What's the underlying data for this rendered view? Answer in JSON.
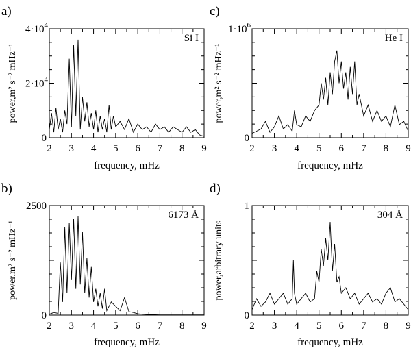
{
  "chart_data": [
    {
      "type": "line",
      "panel_label": "a)",
      "annotation": "Si I",
      "xlabel": "frequency, mHz",
      "ylabel": "power,m² s⁻² mHz⁻¹",
      "xlim": [
        2,
        9
      ],
      "ylim": [
        0,
        40000
      ],
      "xticks": [
        "2",
        "3",
        "4",
        "5",
        "6",
        "7",
        "8",
        "9"
      ],
      "yticks": [
        {
          "value": 0,
          "base": "0",
          "exp": ""
        },
        {
          "value": 20000,
          "base": "2·10",
          "exp": "4"
        },
        {
          "value": 40000,
          "base": "4·10",
          "exp": "4"
        }
      ],
      "x": [
        2.0,
        2.1,
        2.2,
        2.3,
        2.4,
        2.5,
        2.6,
        2.7,
        2.8,
        2.9,
        3.0,
        3.1,
        3.2,
        3.3,
        3.4,
        3.5,
        3.6,
        3.7,
        3.8,
        3.9,
        4.0,
        4.1,
        4.2,
        4.3,
        4.4,
        4.5,
        4.6,
        4.7,
        4.8,
        4.9,
        5.0,
        5.2,
        5.4,
        5.6,
        5.8,
        6.0,
        6.2,
        6.4,
        6.6,
        6.8,
        7.0,
        7.2,
        7.4,
        7.6,
        7.8,
        8.0,
        8.2,
        8.4,
        8.6,
        8.8,
        9.0
      ],
      "values": [
        3000,
        9000,
        2000,
        11000,
        3000,
        7000,
        2000,
        10000,
        5000,
        29000,
        4000,
        34000,
        8000,
        36000,
        3000,
        15000,
        6000,
        13000,
        4000,
        9000,
        3000,
        10000,
        2000,
        8000,
        3000,
        7000,
        2000,
        12000,
        3000,
        8000,
        4000,
        6000,
        3000,
        7000,
        2000,
        5000,
        3000,
        4000,
        2000,
        5000,
        3000,
        4000,
        2000,
        4000,
        3000,
        2000,
        4000,
        2000,
        3000,
        1000,
        500
      ]
    },
    {
      "type": "line",
      "panel_label": "c)",
      "annotation": "He I",
      "xlabel": "frequency, mHz",
      "ylabel": "power,m² s⁻² mHz⁻¹",
      "xlim": [
        2,
        9
      ],
      "ylim": [
        0,
        1000000
      ],
      "xticks": [
        "2",
        "3",
        "4",
        "5",
        "6",
        "7",
        "8",
        "9"
      ],
      "yticks": [
        {
          "value": 0,
          "base": "0",
          "exp": ""
        },
        {
          "value": 1000000,
          "base": "1·10",
          "exp": "6"
        }
      ],
      "x": [
        2.0,
        2.2,
        2.4,
        2.6,
        2.8,
        3.0,
        3.2,
        3.4,
        3.6,
        3.8,
        3.9,
        4.0,
        4.2,
        4.4,
        4.6,
        4.8,
        5.0,
        5.1,
        5.2,
        5.3,
        5.4,
        5.5,
        5.6,
        5.7,
        5.8,
        5.9,
        6.0,
        6.1,
        6.2,
        6.3,
        6.4,
        6.5,
        6.6,
        6.7,
        6.8,
        7.0,
        7.2,
        7.4,
        7.6,
        7.8,
        8.0,
        8.2,
        8.4,
        8.6,
        8.8,
        9.0
      ],
      "values": [
        40000,
        60000,
        80000,
        150000,
        50000,
        100000,
        200000,
        80000,
        120000,
        60000,
        250000,
        120000,
        100000,
        200000,
        150000,
        250000,
        300000,
        500000,
        350000,
        550000,
        300000,
        600000,
        400000,
        700000,
        800000,
        500000,
        700000,
        450000,
        600000,
        350000,
        650000,
        400000,
        700000,
        300000,
        400000,
        200000,
        300000,
        150000,
        250000,
        150000,
        200000,
        100000,
        300000,
        120000,
        150000,
        60000
      ]
    },
    {
      "type": "line",
      "panel_label": "b)",
      "annotation": "6173 Å",
      "xlabel": "frequency, mHz",
      "ylabel": "power,m² s⁻² mHz⁻¹",
      "xlim": [
        2,
        9
      ],
      "ylim": [
        0,
        2500
      ],
      "xticks": [
        "2",
        "3",
        "4",
        "5",
        "6",
        "7",
        "8",
        "9"
      ],
      "yticks": [
        {
          "value": 0,
          "base": "0",
          "exp": ""
        },
        {
          "value": 2500,
          "base": "2500",
          "exp": ""
        }
      ],
      "x": [
        2.0,
        2.2,
        2.4,
        2.5,
        2.6,
        2.7,
        2.8,
        2.9,
        3.0,
        3.1,
        3.2,
        3.3,
        3.4,
        3.5,
        3.6,
        3.7,
        3.8,
        3.9,
        4.0,
        4.1,
        4.2,
        4.3,
        4.4,
        4.5,
        4.6,
        4.8,
        5.0,
        5.2,
        5.4,
        5.6,
        5.8,
        6.0,
        6.2,
        6.4,
        6.6,
        6.8,
        7.0,
        7.5,
        8.0,
        8.5,
        9.0
      ],
      "values": [
        20,
        60,
        40,
        1200,
        300,
        2000,
        500,
        2100,
        800,
        2200,
        600,
        2250,
        700,
        1900,
        500,
        1300,
        400,
        1100,
        300,
        600,
        200,
        500,
        150,
        600,
        100,
        300,
        200,
        100,
        400,
        80,
        60,
        30,
        20,
        15,
        10,
        10,
        5,
        5,
        5,
        5,
        5
      ]
    },
    {
      "type": "line",
      "panel_label": "d)",
      "annotation": "304 Å",
      "xlabel": "frequency, mHz",
      "ylabel": "power,arbitrary units",
      "xlim": [
        2,
        9
      ],
      "ylim": [
        0,
        1
      ],
      "xticks": [
        "2",
        "3",
        "4",
        "5",
        "6",
        "7",
        "8",
        "9"
      ],
      "yticks": [
        {
          "value": 0,
          "base": "0",
          "exp": ""
        },
        {
          "value": 1,
          "base": "1",
          "exp": ""
        }
      ],
      "x": [
        2.0,
        2.2,
        2.4,
        2.6,
        2.8,
        3.0,
        3.2,
        3.4,
        3.6,
        3.8,
        3.85,
        3.9,
        4.0,
        4.2,
        4.4,
        4.6,
        4.8,
        4.9,
        5.0,
        5.1,
        5.2,
        5.3,
        5.4,
        5.5,
        5.6,
        5.7,
        5.8,
        5.9,
        6.0,
        6.2,
        6.4,
        6.6,
        6.8,
        7.0,
        7.2,
        7.4,
        7.6,
        7.8,
        8.0,
        8.2,
        8.4,
        8.6,
        8.8,
        9.0
      ],
      "values": [
        0.05,
        0.15,
        0.08,
        0.12,
        0.2,
        0.1,
        0.15,
        0.2,
        0.1,
        0.15,
        0.5,
        0.2,
        0.1,
        0.15,
        0.2,
        0.12,
        0.15,
        0.4,
        0.3,
        0.6,
        0.45,
        0.7,
        0.5,
        0.85,
        0.4,
        0.65,
        0.3,
        0.35,
        0.2,
        0.25,
        0.15,
        0.2,
        0.1,
        0.15,
        0.2,
        0.12,
        0.15,
        0.1,
        0.2,
        0.25,
        0.12,
        0.15,
        0.1,
        0.05
      ]
    }
  ]
}
